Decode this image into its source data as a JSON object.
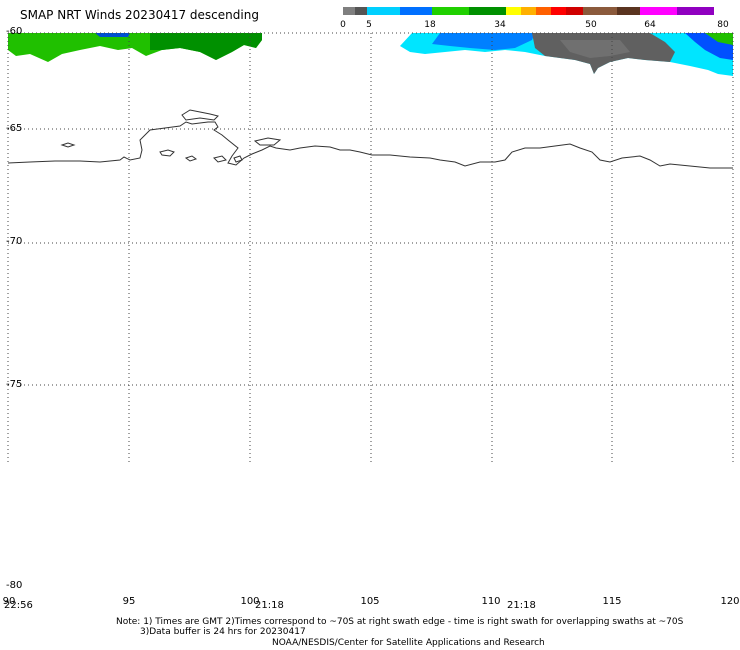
{
  "header": {
    "title": "SMAP NRT Winds  20230417 descending"
  },
  "colorbar": {
    "segments": [
      "#7f7f7f",
      "#5a5a5a",
      "#00c8ff",
      "#0060ff",
      "#20c000",
      "#00a000",
      "#ffff00",
      "#ff9000",
      "#ff4000",
      "#ff0000",
      "#c00000",
      "#8b5a3c",
      "#6e3c22",
      "#ff00ff",
      "#9000c0"
    ],
    "labels": [
      "0",
      "5",
      "18",
      "34",
      "50",
      "64",
      "80"
    ]
  },
  "axes": {
    "lat_labels": [
      "-60",
      "-65",
      "-70",
      "-75",
      "-80"
    ],
    "lon_labels": [
      "90",
      "95",
      "100",
      "105",
      "110",
      "115",
      "120"
    ]
  },
  "swath_times": [
    "22:56",
    "21:18",
    "21:18"
  ],
  "notes": {
    "line1": "Note: 1) Times are GMT 2)Times correspond to ~70S at right swath edge - time is right swath for overlapping swaths at ~70S",
    "line2": "3)Data buffer is 24 hrs for 20230417",
    "line3": "NOAA/NESDIS/Center for Satellite Applications and Research"
  },
  "colors": {
    "green_swath": "#00cc00",
    "dark_green": "#00a000",
    "cyan": "#00e5ff",
    "blue": "#0080ff",
    "gray": "#666666",
    "coast": "#333333"
  }
}
